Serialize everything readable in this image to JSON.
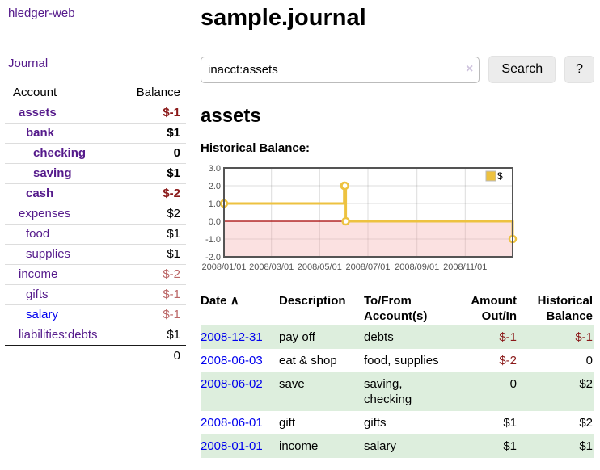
{
  "sidebar": {
    "app_title": "hledger-web",
    "journal_link": "Journal",
    "accounts_header": {
      "account": "Account",
      "balance": "Balance"
    },
    "accounts": [
      {
        "name": "assets",
        "balance": "$-1",
        "depth": 1,
        "bold": true,
        "negative": true,
        "link_style": "visited"
      },
      {
        "name": "bank",
        "balance": "$1",
        "depth": 2,
        "bold": true,
        "negative": false,
        "link_style": "visited"
      },
      {
        "name": "checking",
        "balance": "0",
        "depth": 3,
        "bold": true,
        "negative": false,
        "link_style": "visited"
      },
      {
        "name": "saving",
        "balance": "$1",
        "depth": 3,
        "bold": true,
        "negative": false,
        "link_style": "visited"
      },
      {
        "name": "cash",
        "balance": "$-2",
        "depth": 2,
        "bold": true,
        "negative": true,
        "link_style": "visited"
      },
      {
        "name": "expenses",
        "balance": "$2",
        "depth": 1,
        "bold": false,
        "negative": false,
        "link_style": "visited"
      },
      {
        "name": "food",
        "balance": "$1",
        "depth": 2,
        "bold": false,
        "negative": false,
        "link_style": "visited"
      },
      {
        "name": "supplies",
        "balance": "$1",
        "depth": 2,
        "bold": false,
        "negative": false,
        "link_style": "visited"
      },
      {
        "name": "income",
        "balance": "$-2",
        "depth": 1,
        "bold": false,
        "negative": true,
        "link_style": "visited"
      },
      {
        "name": "gifts",
        "balance": "$-1",
        "depth": 2,
        "bold": false,
        "negative": true,
        "link_style": "visited"
      },
      {
        "name": "salary",
        "balance": "$-1",
        "depth": 2,
        "bold": false,
        "negative": true,
        "link_style": "unvisited"
      },
      {
        "name": "liabilities:debts",
        "balance": "$1",
        "depth": 1,
        "bold": false,
        "negative": false,
        "link_style": "visited"
      }
    ],
    "total": "0"
  },
  "main": {
    "title": "sample.journal",
    "search": {
      "value": "inacct:assets",
      "clear_icon": "×",
      "search_button": "Search",
      "help_button": "?"
    },
    "account_heading": "assets",
    "chart_label": "Historical Balance:",
    "table": {
      "headers": {
        "date": "Date",
        "sort_indicator": "∧",
        "description": "Description",
        "accounts": "To/From Account(s)",
        "amount": "Amount Out/In",
        "balance": "Historical Balance"
      },
      "rows": [
        {
          "date": "2008-12-31",
          "description": "pay off",
          "accounts": "debts",
          "amount": "$-1",
          "amount_negative": true,
          "balance": "$-1",
          "balance_negative": true
        },
        {
          "date": "2008-06-03",
          "description": "eat & shop",
          "accounts": "food, supplies",
          "amount": "$-2",
          "amount_negative": true,
          "balance": "0",
          "balance_negative": false
        },
        {
          "date": "2008-06-02",
          "description": "save",
          "accounts": "saving, checking",
          "amount": "0",
          "amount_negative": false,
          "balance": "$2",
          "balance_negative": false
        },
        {
          "date": "2008-06-01",
          "description": "gift",
          "accounts": "gifts",
          "amount": "$1",
          "amount_negative": false,
          "balance": "$2",
          "balance_negative": false
        },
        {
          "date": "2008-01-01",
          "description": "income",
          "accounts": "salary",
          "amount": "$1",
          "amount_negative": false,
          "balance": "$1",
          "balance_negative": false
        }
      ]
    }
  },
  "chart_data": {
    "type": "line",
    "title": "Historical Balance:",
    "step": true,
    "grid": true,
    "legend": {
      "label": "$",
      "position": "top-right"
    },
    "x_range": [
      "2008-01-01",
      "2008-12-31"
    ],
    "ylim": [
      -2.0,
      3.0
    ],
    "y_ticks": [
      3.0,
      2.0,
      1.0,
      0.0,
      -1.0,
      -2.0
    ],
    "x_tick_labels": [
      "2008/01/01",
      "2008/03/01",
      "2008/05/01",
      "2008/07/01",
      "2008/09/01",
      "2008/11/01"
    ],
    "series": [
      {
        "name": "$",
        "color": "#edc240",
        "points": [
          {
            "date": "2008-01-01",
            "value": 1
          },
          {
            "date": "2008-06-01",
            "value": 2
          },
          {
            "date": "2008-06-02",
            "value": 2
          },
          {
            "date": "2008-06-03",
            "value": 0
          },
          {
            "date": "2008-12-31",
            "value": -1
          }
        ]
      }
    ],
    "negative_region": true
  },
  "colors": {
    "link_purple": "#551a8b",
    "link_blue": "#0000ee",
    "negative_dark": "#8b1a1a",
    "negative_light": "#bb6666",
    "stripe_green": "#ddeedd",
    "chart_line": "#edc240",
    "chart_zero_line": "#a40000",
    "chart_negative_region": "#f4aaaa",
    "chart_border": "#545454",
    "chart_grid": "#828282",
    "chart_tick_text": "#545454"
  }
}
